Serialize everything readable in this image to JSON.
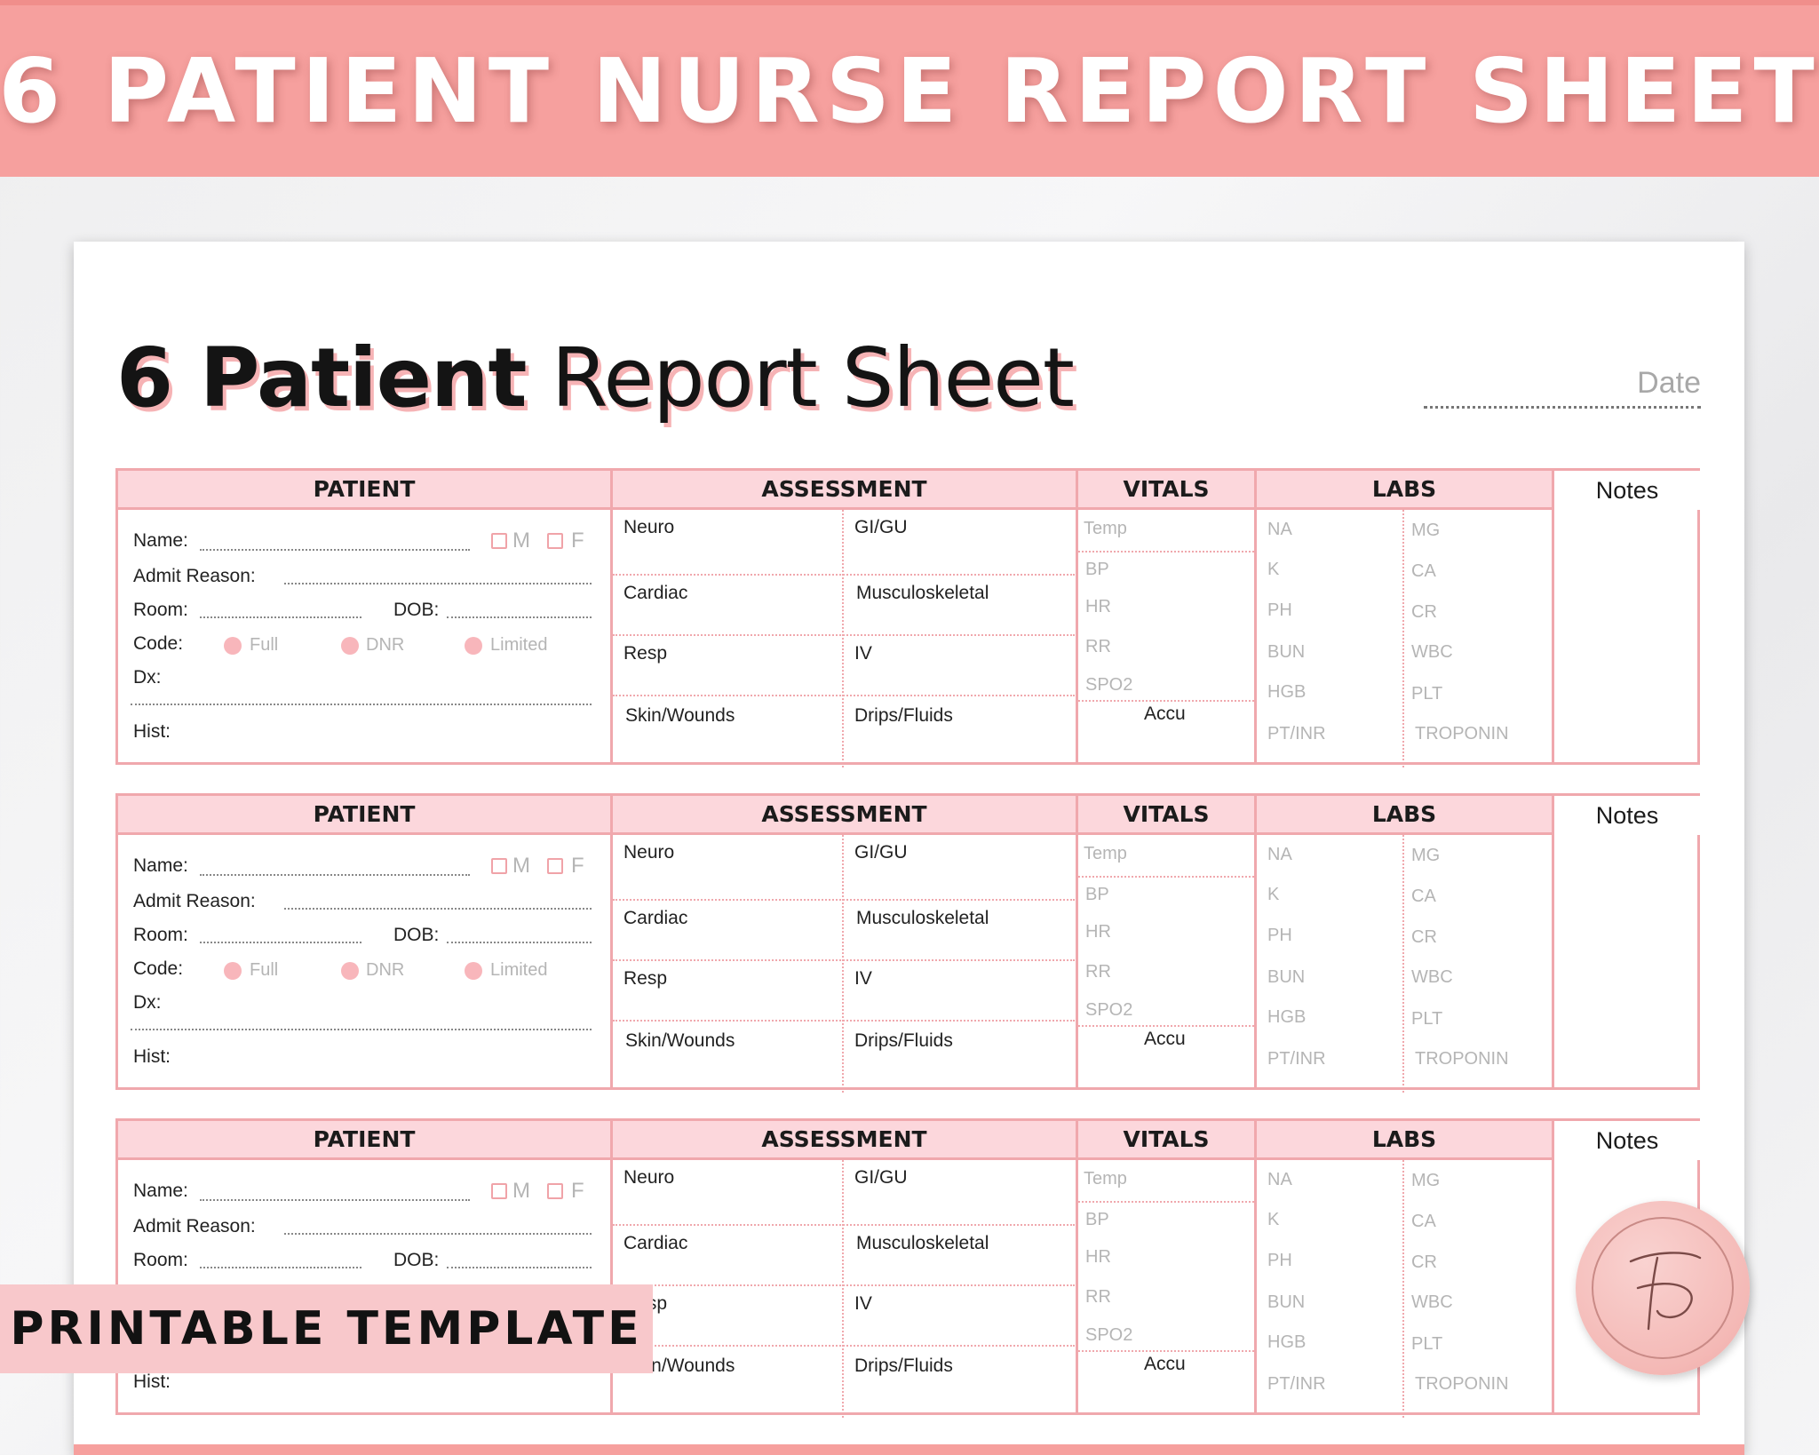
{
  "banner": {
    "title": "6 PATIENT NURSE REPORT SHEET"
  },
  "sheet": {
    "title_bold": "6 Patient",
    "title_regular": "Report Sheet",
    "date_label": "Date"
  },
  "block_headers": {
    "patient": "PATIENT",
    "assessment": "ASSESSMENT",
    "vitals": "VITALS",
    "labs": "LABS",
    "notes": "Notes"
  },
  "patient_fields": {
    "name": "Name:",
    "admit_reason": "Admit Reason:",
    "room": "Room:",
    "dob": "DOB:",
    "code": "Code:",
    "dx": "Dx:",
    "hist": "Hist:",
    "male": "M",
    "female": "F",
    "code_options": [
      "Full",
      "DNR",
      "Limited"
    ]
  },
  "assessment_fields": {
    "neuro": "Neuro",
    "gigu": "GI/GU",
    "cardiac": "Cardiac",
    "musculoskeletal": "Musculoskeletal",
    "resp": "Resp",
    "iv": "IV",
    "skin": "Skin/Wounds",
    "drips": "Drips/Fluids"
  },
  "vitals_fields": [
    "Temp",
    "BP",
    "HR",
    "RR",
    "SPO2"
  ],
  "vitals_accu": "Accu",
  "labs_left": [
    "NA",
    "K",
    "PH",
    "BUN",
    "HGB",
    "PT/INR"
  ],
  "labs_right": [
    "MG",
    "CA",
    "CR",
    "WBC",
    "PLT",
    "TROPONIN"
  ],
  "overlay": {
    "printable": "PRINTABLE TEMPLATE"
  },
  "colors": {
    "banner": "#f6a09e",
    "header_fill": "#fcd7dc",
    "border": "#f0a8ad",
    "radio": "#f8b6bb"
  }
}
